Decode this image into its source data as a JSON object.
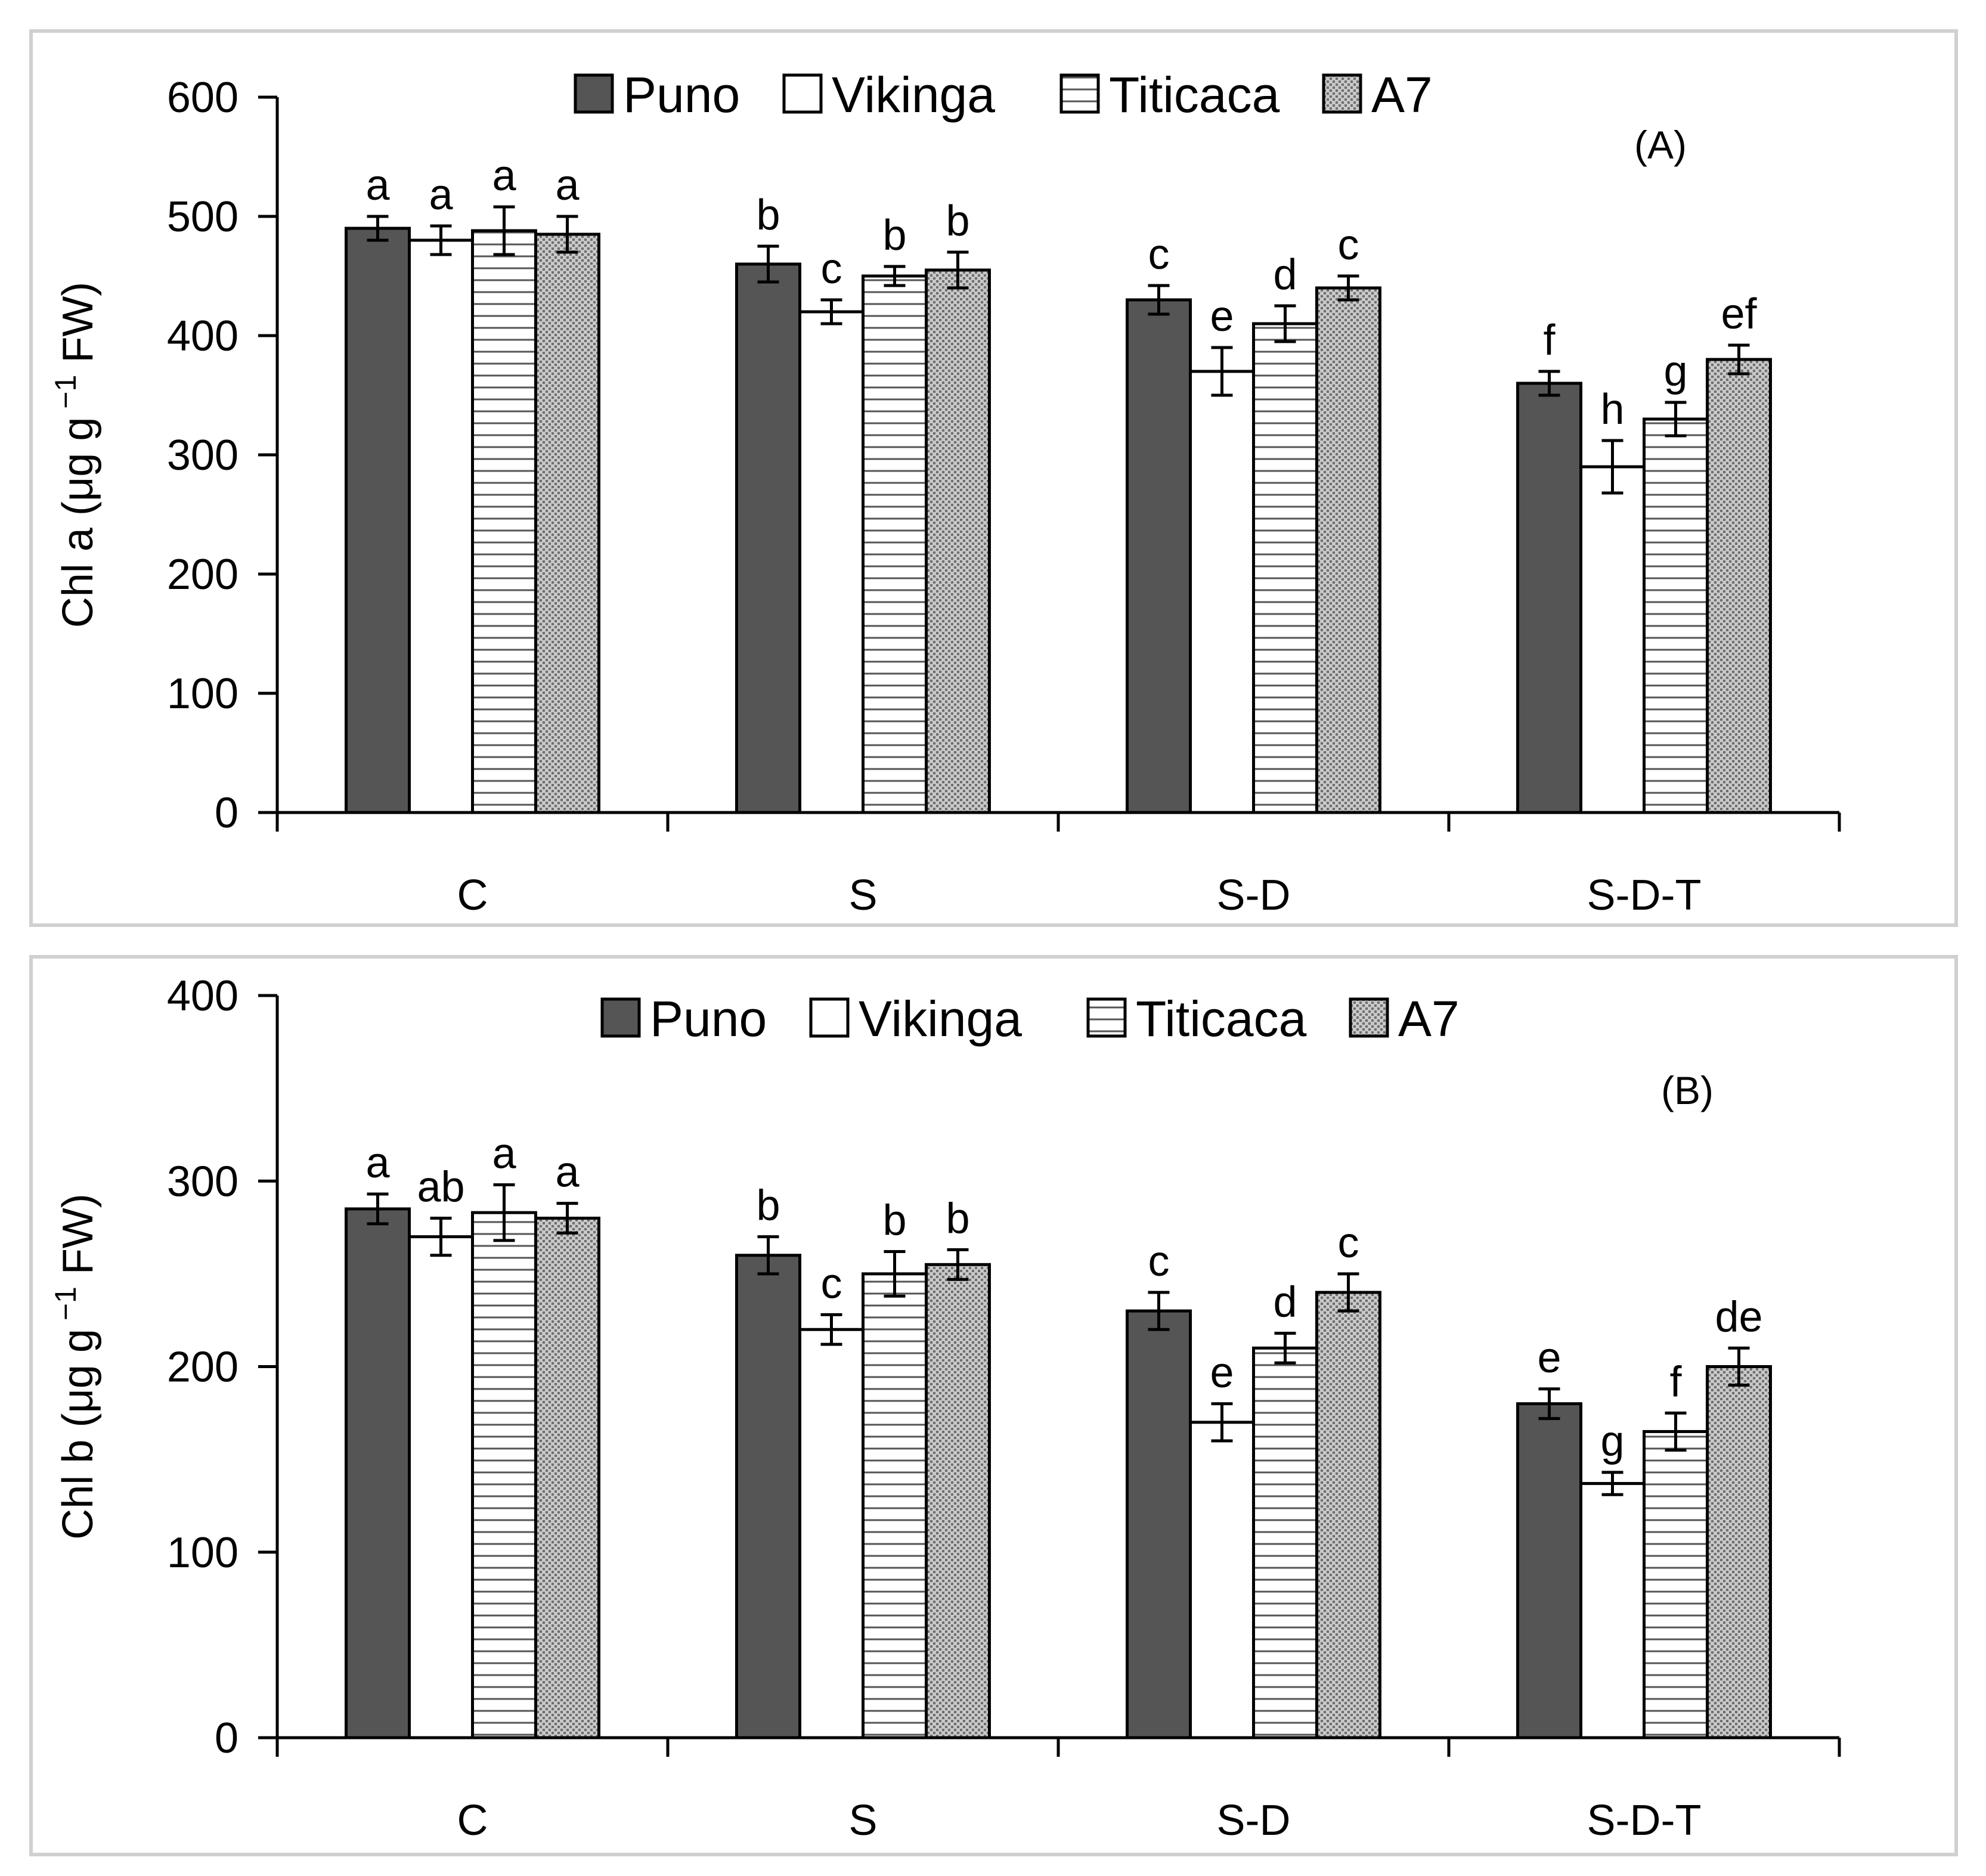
{
  "colors": {
    "Puno": "#555555",
    "Vikinga": "#ffffff",
    "Titicaca": "stripes",
    "A7": "dots"
  },
  "chart_data": [
    {
      "type": "bar",
      "panel_label": "(A)",
      "ylabel_main": "Chl a (μg g",
      "ylabel_sup": "−1",
      "ylabel_tail": " FW)",
      "ylim": [
        0,
        600
      ],
      "yticks": [
        0,
        100,
        200,
        300,
        400,
        500,
        600
      ],
      "categories": [
        "C",
        "S",
        "S-D",
        "S-D-T"
      ],
      "legend": [
        "Puno",
        "Vikinga",
        "Titicaca",
        "A7"
      ],
      "series": [
        {
          "name": "Puno",
          "values": [
            490,
            460,
            430,
            360
          ],
          "errors": [
            10,
            15,
            12,
            10
          ],
          "letters": [
            "a",
            "b",
            "c",
            "f"
          ]
        },
        {
          "name": "Vikinga",
          "values": [
            480,
            420,
            370,
            290
          ],
          "errors": [
            12,
            10,
            20,
            22
          ],
          "letters": [
            "a",
            "c",
            "e",
            "h"
          ]
        },
        {
          "name": "Titicaca",
          "values": [
            488,
            450,
            410,
            330
          ],
          "errors": [
            20,
            8,
            15,
            14
          ],
          "letters": [
            "a",
            "b",
            "d",
            "g"
          ]
        },
        {
          "name": "A7",
          "values": [
            485,
            455,
            440,
            380
          ],
          "errors": [
            15,
            15,
            10,
            12
          ],
          "letters": [
            "a",
            "b",
            "c",
            "ef"
          ]
        }
      ]
    },
    {
      "type": "bar",
      "panel_label": "(B)",
      "ylabel_main": "Chl b (μg g",
      "ylabel_sup": "−1",
      "ylabel_tail": " FW)",
      "ylim": [
        0,
        400
      ],
      "yticks": [
        0,
        100,
        200,
        300,
        400
      ],
      "categories": [
        "C",
        "S",
        "S-D",
        "S-D-T"
      ],
      "legend": [
        "Puno",
        "Vikinga",
        "Titicaca",
        "A7"
      ],
      "series": [
        {
          "name": "Puno",
          "values": [
            285,
            260,
            230,
            180
          ],
          "errors": [
            8,
            10,
            10,
            8
          ],
          "letters": [
            "a",
            "b",
            "c",
            "e"
          ]
        },
        {
          "name": "Vikinga",
          "values": [
            270,
            220,
            170,
            137
          ],
          "errors": [
            10,
            8,
            10,
            6
          ],
          "letters": [
            "ab",
            "c",
            "e",
            "g"
          ]
        },
        {
          "name": "Titicaca",
          "values": [
            283,
            250,
            210,
            165
          ],
          "errors": [
            15,
            12,
            8,
            10
          ],
          "letters": [
            "a",
            "b",
            "d",
            "f"
          ]
        },
        {
          "name": "A7",
          "values": [
            280,
            255,
            240,
            200
          ],
          "errors": [
            8,
            8,
            10,
            10
          ],
          "letters": [
            "a",
            "b",
            "c",
            "de"
          ]
        }
      ]
    }
  ]
}
